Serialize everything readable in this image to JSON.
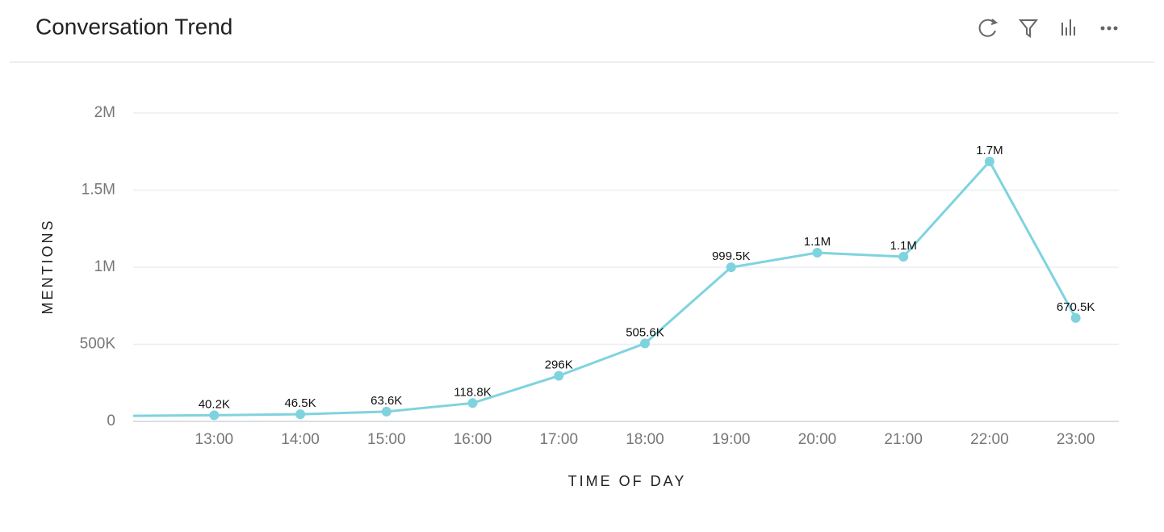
{
  "header": {
    "title": "Conversation Trend"
  },
  "chart_data": {
    "type": "line",
    "x": [
      12,
      13,
      14,
      15,
      16,
      17,
      18,
      19,
      20,
      21,
      22,
      23
    ],
    "xlim": [
      12.06,
      23.5
    ],
    "xticks": [
      {
        "value": 13,
        "label": "13:00"
      },
      {
        "value": 14,
        "label": "14:00"
      },
      {
        "value": 15,
        "label": "15:00"
      },
      {
        "value": 16,
        "label": "16:00"
      },
      {
        "value": 17,
        "label": "17:00"
      },
      {
        "value": 18,
        "label": "18:00"
      },
      {
        "value": 19,
        "label": "19:00"
      },
      {
        "value": 20,
        "label": "20:00"
      },
      {
        "value": 21,
        "label": "21:00"
      },
      {
        "value": 22,
        "label": "22:00"
      },
      {
        "value": 23,
        "label": "23:00"
      }
    ],
    "series": [
      {
        "name": "Mentions",
        "color": "#7fd3df",
        "values": [
          36000,
          40200,
          46500,
          63600,
          118800,
          296000,
          505600,
          999500,
          1094000,
          1068000,
          1686000,
          670500
        ],
        "value_labels": [
          null,
          "40.2K",
          "46.5K",
          "63.6K",
          "118.8K",
          "296K",
          "505.6K",
          "999.5K",
          "1.1M",
          "1.1M",
          "1.7M",
          "670.5K"
        ]
      }
    ],
    "ylim": [
      0,
      2000000
    ],
    "yticks": [
      0,
      {
        "value": 500000,
        "label": "500K"
      },
      {
        "value": 1000000,
        "label": "1M"
      },
      {
        "value": 1500000,
        "label": "1.5M"
      },
      {
        "value": 2000000,
        "label": "2M"
      }
    ],
    "grid": true,
    "x_label": "TIME OF DAY",
    "y_label": "MENTIONS"
  }
}
